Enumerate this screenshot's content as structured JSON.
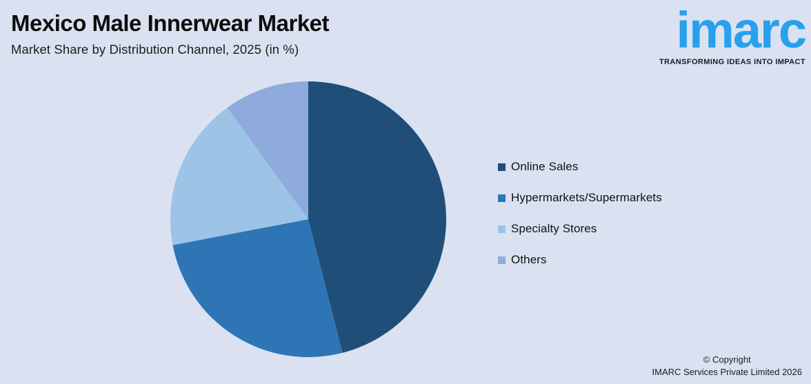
{
  "header": {
    "title": "Mexico Male Innerwear Market",
    "subtitle": "Market Share by Distribution Channel, 2025 (in %)"
  },
  "logo": {
    "wordmark": "imarc",
    "tagline": "TRANSFORMING IDEAS INTO IMPACT",
    "brand_color": "#28a0ee"
  },
  "footer": {
    "line1": "© Copyright",
    "line2": "IMARC Services Private Limited 2026"
  },
  "colors": {
    "background": "#dae1f0",
    "title_text": "#0d0d0d",
    "legend_text": "#121212"
  },
  "chart_data": {
    "type": "pie",
    "title": "Mexico Male Innerwear Market",
    "subtitle": "Market Share by Distribution Channel, 2025 (in %)",
    "year": "2025",
    "unit": "%",
    "categories": [
      "Online Sales",
      "Hypermarkets/Supermarkets",
      "Specialty Stores",
      "Others"
    ],
    "values": [
      46,
      26,
      18,
      10
    ],
    "colors": [
      "#1f4e79",
      "#2e75b6",
      "#9dc3e6",
      "#8faadc"
    ],
    "start_angle_deg": 0,
    "direction": "clockwise",
    "legend_position": "right",
    "data_labels": false
  }
}
